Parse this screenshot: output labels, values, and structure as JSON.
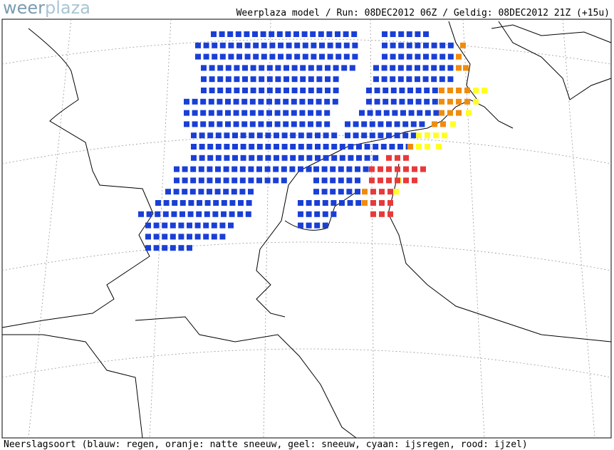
{
  "logo": {
    "first": "weer",
    "second": "plaza"
  },
  "header": "Weerplaza model / Run: 08DEC2012 06Z / Geldig: 08DEC2012 21Z (+15u)",
  "footer": "Neerslagsoort (blauw: regen, oranje: natte sneeuw, geel: sneeuw, cyaan: ijsregen, rood: ijzel)"
}
